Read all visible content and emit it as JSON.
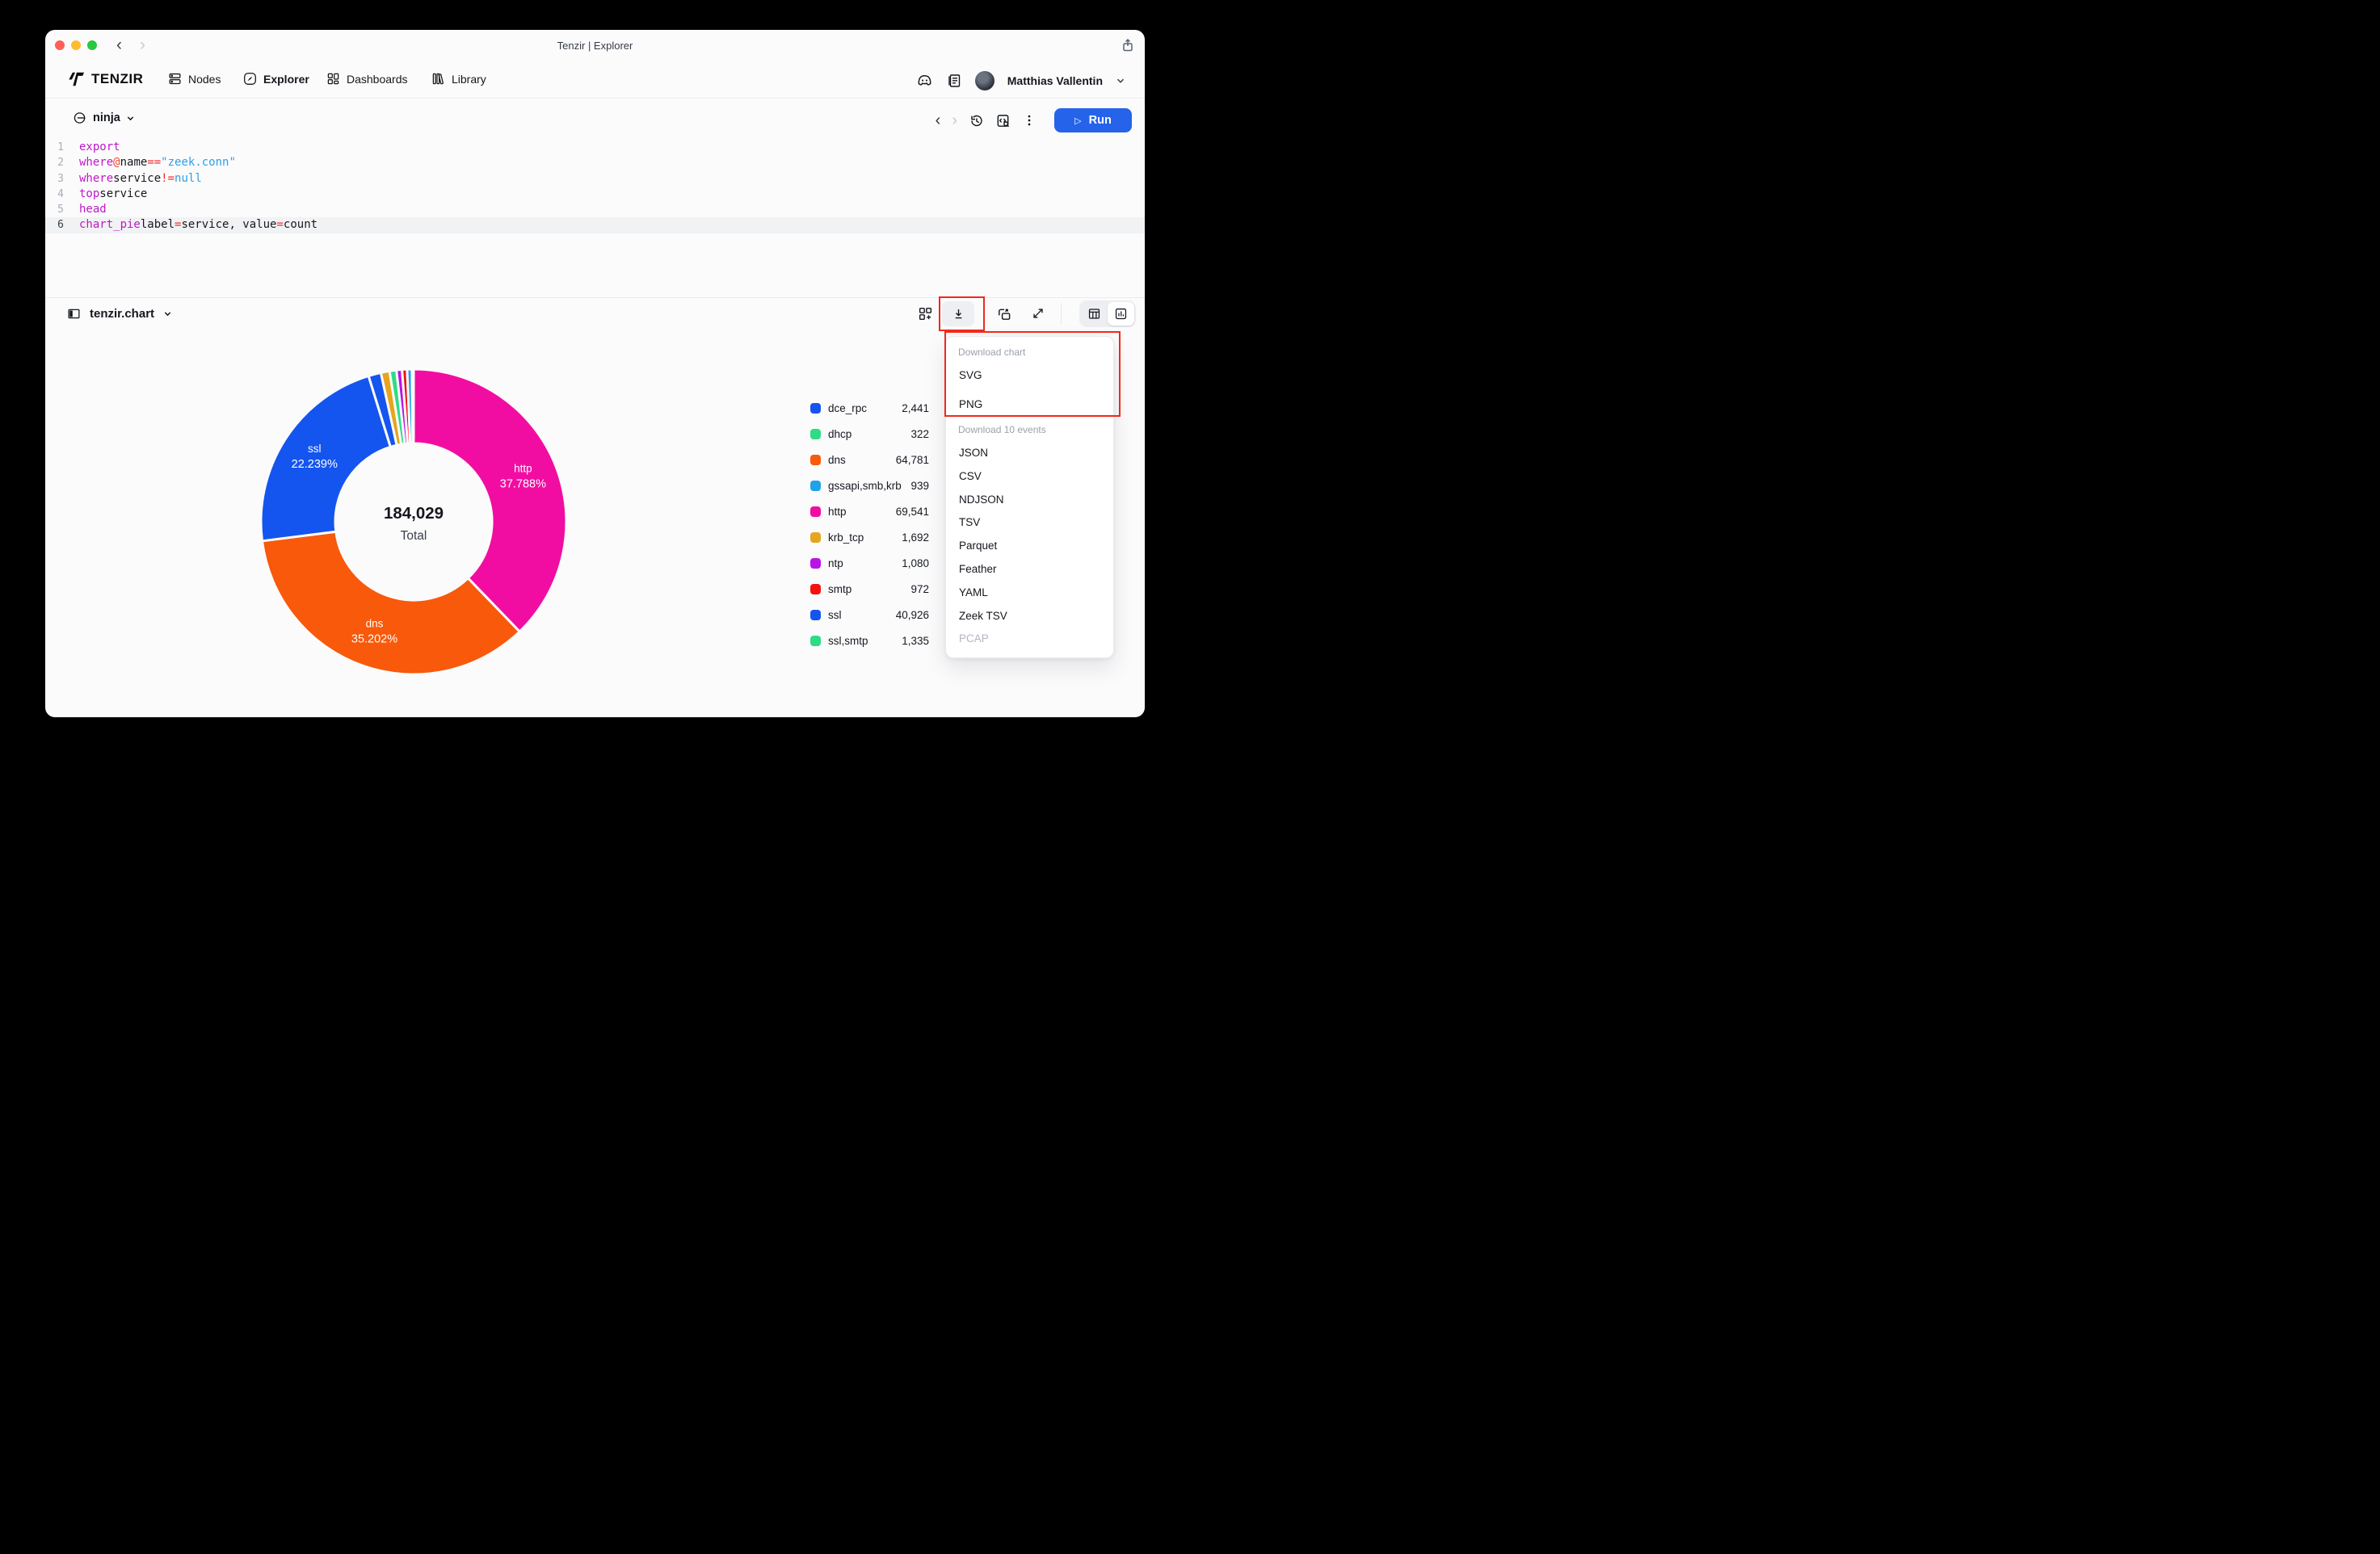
{
  "window": {
    "title": "Tenzir | Explorer"
  },
  "colors": {
    "accent_blue": "#2563EB",
    "annotation_red": "#F2281C",
    "traffic_red": "#FF5F57",
    "traffic_yellow": "#FEBC2E",
    "traffic_green": "#28C840"
  },
  "nav": {
    "brand": "TENZIR",
    "items": [
      {
        "label": "Nodes"
      },
      {
        "label": "Explorer",
        "active": true
      },
      {
        "label": "Dashboards"
      },
      {
        "label": "Library"
      }
    ],
    "user": {
      "name": "Matthias Vallentin"
    }
  },
  "editor": {
    "pipeline_name": "ninja",
    "run_label": "Run",
    "active_line": 6,
    "lines": [
      [
        {
          "t": "export",
          "c": "kw"
        }
      ],
      [
        {
          "t": "where",
          "c": "kw"
        },
        {
          "t": " ",
          "c": "pl"
        },
        {
          "t": "@",
          "c": "at"
        },
        {
          "t": "name ",
          "c": "pl"
        },
        {
          "t": "==",
          "c": "op"
        },
        {
          "t": " ",
          "c": "pl"
        },
        {
          "t": "\"zeek.conn\"",
          "c": "str"
        }
      ],
      [
        {
          "t": "where",
          "c": "kw"
        },
        {
          "t": " service ",
          "c": "pl"
        },
        {
          "t": "!=",
          "c": "op"
        },
        {
          "t": " ",
          "c": "pl"
        },
        {
          "t": "null",
          "c": "str"
        }
      ],
      [
        {
          "t": "top",
          "c": "kw"
        },
        {
          "t": " service",
          "c": "pl"
        }
      ],
      [
        {
          "t": "head",
          "c": "kw"
        }
      ],
      [
        {
          "t": "chart_pie",
          "c": "kw"
        },
        {
          "t": " label",
          "c": "pl"
        },
        {
          "t": "=",
          "c": "op"
        },
        {
          "t": "service, value",
          "c": "pl"
        },
        {
          "t": "=",
          "c": "op"
        },
        {
          "t": "count",
          "c": "pl"
        }
      ]
    ]
  },
  "results": {
    "title": "tenzir.chart"
  },
  "download_menu": {
    "sections": [
      {
        "header": "Download chart",
        "items": [
          {
            "label": "SVG"
          },
          {
            "label": "PNG"
          }
        ]
      },
      {
        "header": "Download 10 events",
        "items": [
          {
            "label": "JSON"
          },
          {
            "label": "CSV"
          },
          {
            "label": "NDJSON"
          },
          {
            "label": "TSV"
          },
          {
            "label": "Parquet"
          },
          {
            "label": "Feather"
          },
          {
            "label": "YAML"
          },
          {
            "label": "Zeek TSV"
          },
          {
            "label": "PCAP",
            "disabled": true
          }
        ]
      }
    ]
  },
  "chart_data": {
    "type": "pie",
    "style": "donut",
    "total_value": 184029,
    "total_display": "184,029",
    "total_label": "Total",
    "legend_position": "right",
    "pie_order": [
      "http",
      "dns",
      "ssl",
      "dce_rpc",
      "krb_tcp",
      "ssl,smtp",
      "ntp",
      "smtp",
      "gssapi,smb,krb",
      "dhcp"
    ],
    "segments": [
      {
        "label": "dce_rpc",
        "value": 2441,
        "display": "2,441",
        "color": "#1455F0"
      },
      {
        "label": "dhcp",
        "value": 322,
        "display": "322",
        "color": "#2FDC86"
      },
      {
        "label": "dns",
        "value": 64781,
        "display": "64,781",
        "color": "#F8590B",
        "pct_label": "35.202%"
      },
      {
        "label": "gssapi,smb,krb",
        "value": 939,
        "display": "939",
        "color": "#1FA3E8"
      },
      {
        "label": "http",
        "value": 69541,
        "display": "69,541",
        "color": "#F20DA2",
        "pct_label": "37.788%"
      },
      {
        "label": "krb_tcp",
        "value": 1692,
        "display": "1,692",
        "color": "#E5A51F"
      },
      {
        "label": "ntp",
        "value": 1080,
        "display": "1,080",
        "color": "#B813E5"
      },
      {
        "label": "smtp",
        "value": 972,
        "display": "972",
        "color": "#F21212"
      },
      {
        "label": "ssl",
        "value": 40926,
        "display": "40,926",
        "color": "#1455F0",
        "pct_label": "22.239%"
      },
      {
        "label": "ssl,smtp",
        "value": 1335,
        "display": "1,335",
        "color": "#2FDC86"
      }
    ]
  }
}
